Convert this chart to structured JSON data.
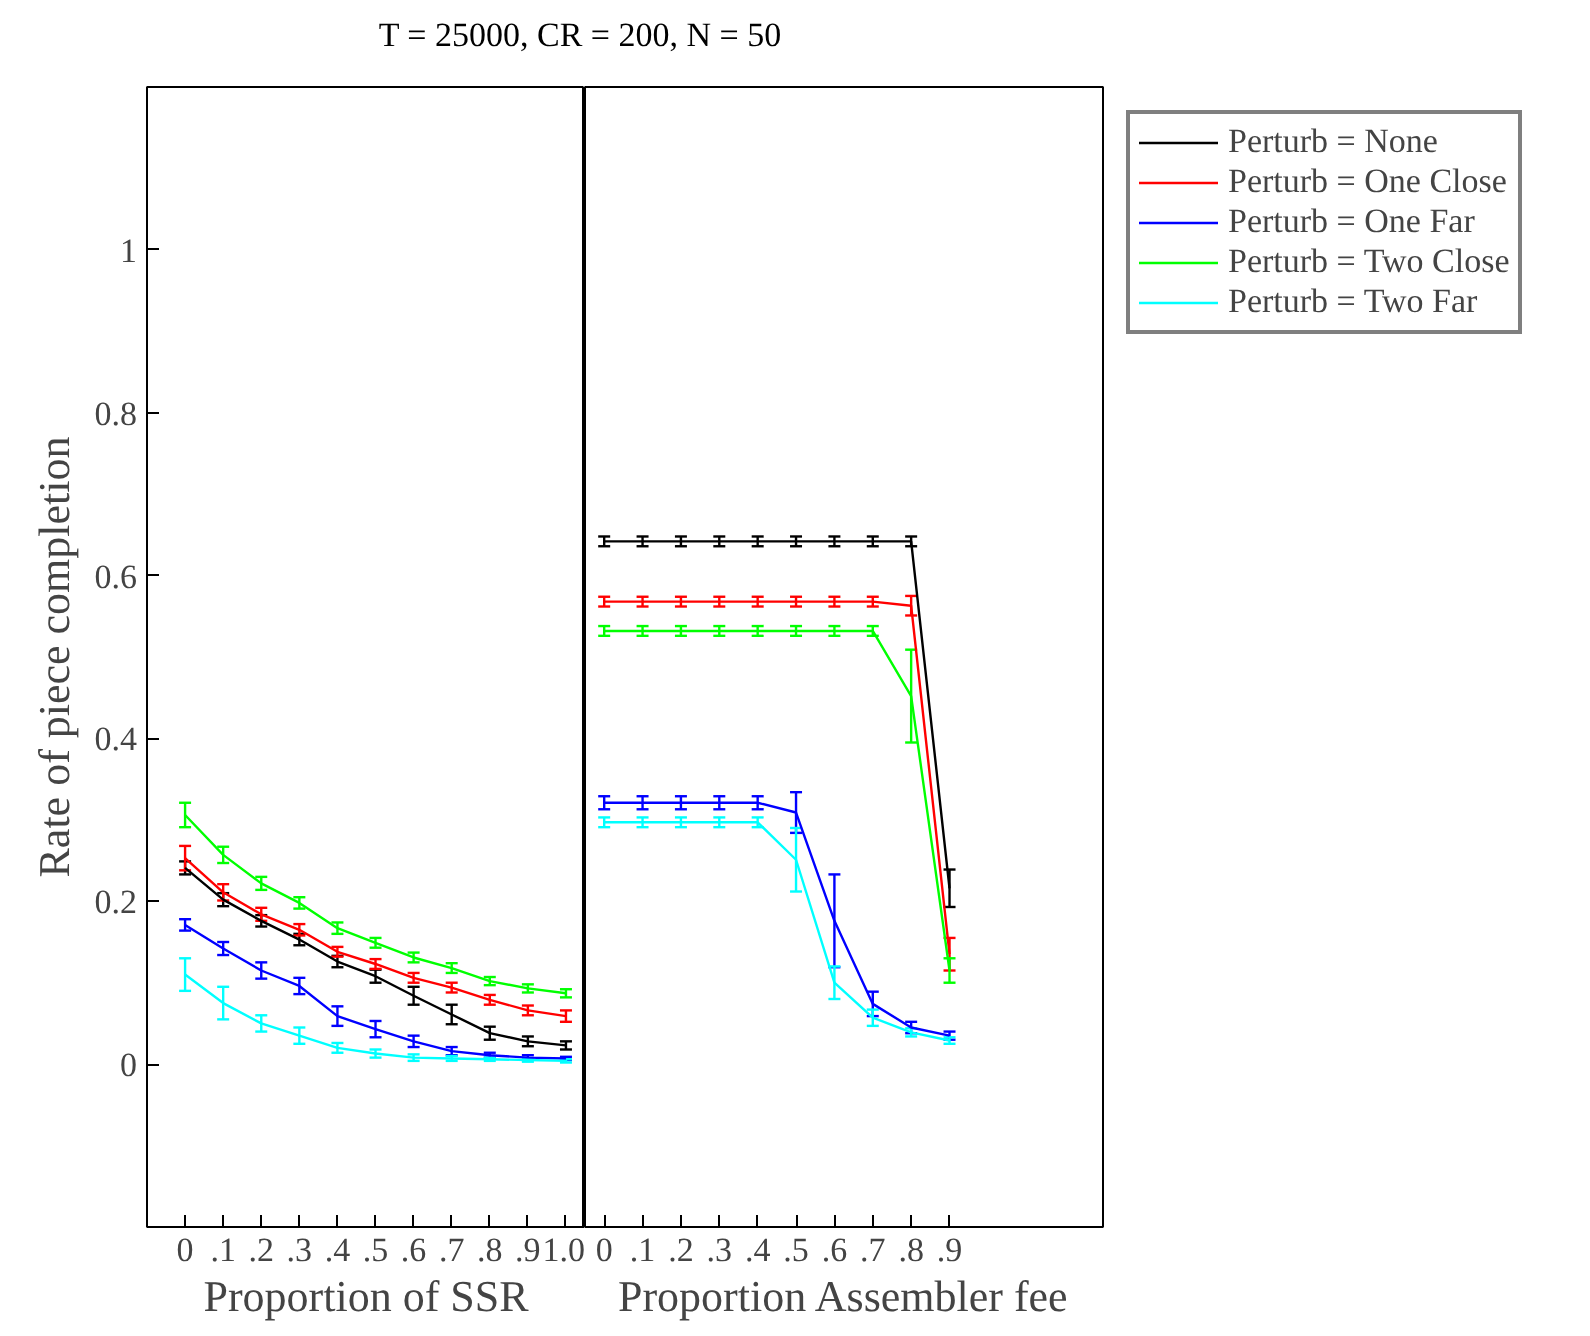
{
  "chart_data": [
    {
      "type": "line",
      "title": "T = 25000, CR = 200, N = 50",
      "ylabel": "Rate of piece completion",
      "xlabel": "Proportion of SSR",
      "x": [
        0,
        0.1,
        0.2,
        0.3,
        0.4,
        0.5,
        0.6,
        0.7,
        0.8,
        0.9,
        1.0
      ],
      "xlim": [
        -0.1,
        1.05
      ],
      "xticks": [
        0,
        {
          "value": 0.1,
          "label": ".1"
        },
        {
          "value": 0.2,
          "label": ".2"
        },
        {
          "value": 0.3,
          "label": ".3"
        },
        {
          "value": 0.4,
          "label": ".4"
        },
        {
          "value": 0.5,
          "label": ".5"
        },
        {
          "value": 0.6,
          "label": ".6"
        },
        {
          "value": 0.7,
          "label": ".7"
        },
        {
          "value": 0.8,
          "label": ".8"
        },
        {
          "value": 0.9,
          "label": ".9"
        },
        {
          "value": 1.0,
          "label": "1.0"
        }
      ],
      "ylim": [
        -0.2,
        1.2
      ],
      "yticks": [
        0,
        0.2,
        0.4,
        0.6,
        0.8,
        1
      ],
      "grid": false,
      "line_style": "solid",
      "marker": "none",
      "series": [
        {
          "color": "#000000",
          "values": [
            0.241,
            0.202,
            0.176,
            0.153,
            0.126,
            0.108,
            0.084,
            0.061,
            0.038,
            0.028,
            0.023
          ],
          "errors": [
            0.008,
            0.008,
            0.007,
            0.007,
            0.007,
            0.008,
            0.011,
            0.012,
            0.008,
            0.006,
            0.005
          ]
        },
        {
          "color": "#ff0000",
          "values": [
            0.253,
            0.211,
            0.184,
            0.165,
            0.138,
            0.123,
            0.106,
            0.094,
            0.079,
            0.066,
            0.059
          ],
          "errors": [
            0.015,
            0.01,
            0.008,
            0.007,
            0.006,
            0.006,
            0.006,
            0.006,
            0.006,
            0.006,
            0.007
          ]
        },
        {
          "color": "#0000ff",
          "values": [
            0.171,
            0.142,
            0.115,
            0.096,
            0.059,
            0.043,
            0.028,
            0.016,
            0.011,
            0.008,
            0.007
          ],
          "errors": [
            0.007,
            0.008,
            0.01,
            0.01,
            0.012,
            0.01,
            0.007,
            0.005,
            0.003,
            0.003,
            0.002
          ]
        },
        {
          "color": "#00ff00",
          "values": [
            0.306,
            0.257,
            0.222,
            0.198,
            0.167,
            0.149,
            0.131,
            0.118,
            0.102,
            0.093,
            0.087
          ],
          "errors": [
            0.015,
            0.01,
            0.008,
            0.007,
            0.007,
            0.006,
            0.006,
            0.006,
            0.005,
            0.005,
            0.005
          ]
        },
        {
          "color": "#00ffff",
          "values": [
            0.11,
            0.075,
            0.05,
            0.035,
            0.02,
            0.013,
            0.008,
            0.007,
            0.006,
            0.005,
            0.004
          ],
          "errors": [
            0.02,
            0.02,
            0.01,
            0.01,
            0.006,
            0.005,
            0.004,
            0.003,
            0.002,
            0.002,
            0.002
          ]
        }
      ]
    },
    {
      "type": "line",
      "xlabel": "Proportion Assembler fee",
      "tick_labels": "x",
      "legend": "top right",
      "x": [
        0,
        0.1,
        0.2,
        0.3,
        0.4,
        0.5,
        0.6,
        0.7,
        0.8,
        0.9
      ],
      "xlim": [
        -0.05,
        1.3
      ],
      "xticks": [
        0,
        {
          "value": 0.1,
          "label": ".1"
        },
        {
          "value": 0.2,
          "label": ".2"
        },
        {
          "value": 0.3,
          "label": ".3"
        },
        {
          "value": 0.4,
          "label": ".4"
        },
        {
          "value": 0.5,
          "label": ".5"
        },
        {
          "value": 0.6,
          "label": ".6"
        },
        {
          "value": 0.7,
          "label": ".7"
        },
        {
          "value": 0.8,
          "label": ".8"
        },
        {
          "value": 0.9,
          "label": ".9"
        }
      ],
      "ylim": [
        -0.2,
        1.2
      ],
      "yticks": [
        0,
        0.2,
        0.4,
        0.6,
        0.8,
        1
      ],
      "grid": false,
      "line_style": "solid",
      "marker": "none",
      "series": [
        {
          "name": "Perturb = None",
          "color": "#000000",
          "values": [
            0.642,
            0.642,
            0.642,
            0.642,
            0.642,
            0.642,
            0.642,
            0.642,
            0.642,
            0.216
          ],
          "errors": [
            0.006,
            0.006,
            0.006,
            0.006,
            0.006,
            0.006,
            0.006,
            0.006,
            0.006,
            0.023
          ]
        },
        {
          "name": "Perturb = One Close",
          "color": "#ff0000",
          "values": [
            0.568,
            0.568,
            0.568,
            0.568,
            0.568,
            0.568,
            0.568,
            0.568,
            0.563,
            0.135
          ],
          "errors": [
            0.006,
            0.006,
            0.006,
            0.006,
            0.006,
            0.006,
            0.006,
            0.006,
            0.012,
            0.02
          ]
        },
        {
          "name": "Perturb = One Far",
          "color": "#0000ff",
          "values": [
            0.321,
            0.321,
            0.321,
            0.321,
            0.321,
            0.309,
            0.176,
            0.074,
            0.045,
            0.035
          ],
          "errors": [
            0.008,
            0.008,
            0.008,
            0.008,
            0.008,
            0.025,
            0.057,
            0.015,
            0.007,
            0.005
          ]
        },
        {
          "name": "Perturb = Two Close",
          "color": "#00ff00",
          "values": [
            0.532,
            0.532,
            0.532,
            0.532,
            0.532,
            0.532,
            0.532,
            0.532,
            0.452,
            0.115
          ],
          "errors": [
            0.006,
            0.006,
            0.006,
            0.006,
            0.006,
            0.006,
            0.006,
            0.006,
            0.057,
            0.015
          ]
        },
        {
          "name": "Perturb = Two Far",
          "color": "#00ffff",
          "values": [
            0.297,
            0.297,
            0.297,
            0.297,
            0.297,
            0.251,
            0.1,
            0.057,
            0.039,
            0.029
          ],
          "errors": [
            0.006,
            0.006,
            0.006,
            0.006,
            0.006,
            0.039,
            0.02,
            0.01,
            0.005,
            0.004
          ]
        }
      ]
    }
  ]
}
